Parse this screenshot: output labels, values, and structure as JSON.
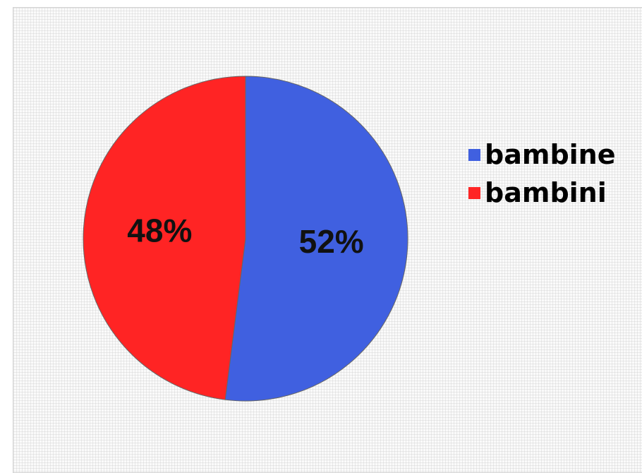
{
  "chart_data": {
    "type": "pie",
    "title": "",
    "slices": [
      {
        "label": "bambine",
        "value": 52,
        "value_label": "52%",
        "color": "#4060e0"
      },
      {
        "label": "bambini",
        "value": 48,
        "value_label": "48%",
        "color": "#ff2424"
      }
    ],
    "legend_position": "right"
  }
}
